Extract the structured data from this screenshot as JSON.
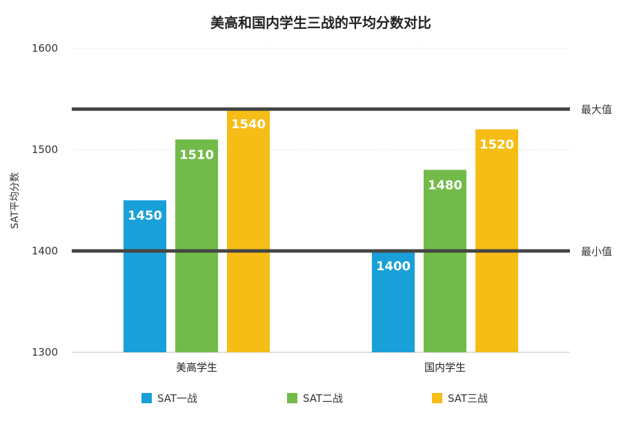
{
  "chart_data": {
    "type": "bar",
    "title": "美高和国内学生三战的平均分数对比",
    "ylabel": "SAT平均分数",
    "xlabel": "",
    "ylim": [
      1300,
      1600
    ],
    "yticks": [
      1300,
      1400,
      1500,
      1600
    ],
    "grid": true,
    "legend_position": "bottom",
    "categories": [
      "美高学生",
      "国内学生"
    ],
    "series": [
      {
        "name": "SAT一战",
        "color": "#1aa0d8",
        "values": [
          1450,
          1400
        ]
      },
      {
        "name": "SAT二战",
        "color": "#72bb4a",
        "values": [
          1510,
          1480
        ]
      },
      {
        "name": "SAT三战",
        "color": "#f6bd16",
        "values": [
          1540,
          1520
        ]
      }
    ],
    "reference_lines": [
      {
        "label": "最大值",
        "value": 1540,
        "color": "#444444"
      },
      {
        "label": "最小值",
        "value": 1400,
        "color": "#444444"
      }
    ]
  }
}
